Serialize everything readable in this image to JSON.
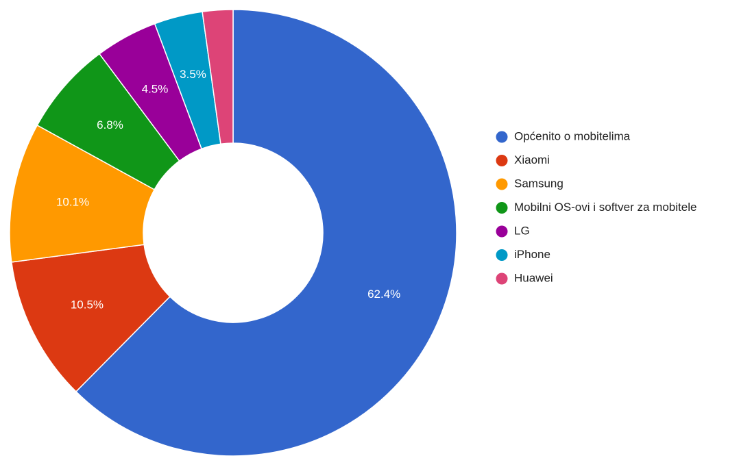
{
  "chart_data": {
    "type": "pie",
    "donut": true,
    "legend_position": "right",
    "slices": [
      {
        "label": "Općenito o mobitelima",
        "value": 62.4,
        "display": "62.4%",
        "color": "#3366cc"
      },
      {
        "label": "Xiaomi",
        "value": 10.5,
        "display": "10.5%",
        "color": "#dc3912"
      },
      {
        "label": "Samsung",
        "value": 10.1,
        "display": "10.1%",
        "color": "#ff9900"
      },
      {
        "label": "Mobilni OS-ovi i softver za mobitele",
        "value": 6.8,
        "display": "6.8%",
        "color": "#109618"
      },
      {
        "label": "LG",
        "value": 4.5,
        "display": "4.5%",
        "color": "#990099"
      },
      {
        "label": "iPhone",
        "value": 3.5,
        "display": "3.5%",
        "color": "#0099c6"
      },
      {
        "label": "Huawei",
        "value": 2.2,
        "display": "",
        "color": "#dd4477"
      }
    ]
  }
}
